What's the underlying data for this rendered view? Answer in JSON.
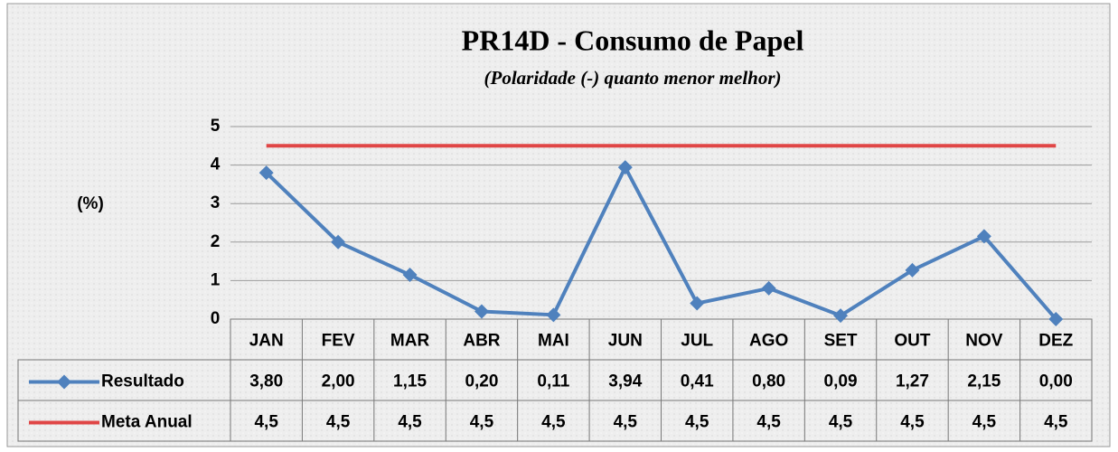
{
  "chart_data": {
    "type": "line",
    "title": "PR14D - Consumo de Papel",
    "subtitle": "(Polaridade (-) quanto menor melhor)",
    "y_label": "(%)",
    "categories": [
      "JAN",
      "FEV",
      "MAR",
      "ABR",
      "MAI",
      "JUN",
      "JUL",
      "AGO",
      "SET",
      "OUT",
      "NOV",
      "DEZ"
    ],
    "series": [
      {
        "name": "Resultado",
        "color": "#4f81bd",
        "marker": "diamond",
        "values": [
          3.8,
          2.0,
          1.15,
          0.2,
          0.11,
          3.94,
          0.41,
          0.8,
          0.09,
          1.27,
          2.15,
          0.0
        ],
        "value_labels": [
          "3,80",
          "2,00",
          "1,15",
          "0,20",
          "0,11",
          "3,94",
          "0,41",
          "0,80",
          "0,09",
          "1,27",
          "2,15",
          "0,00"
        ]
      },
      {
        "name": "Meta Anual",
        "color": "#e04646",
        "marker": "none",
        "values": [
          4.5,
          4.5,
          4.5,
          4.5,
          4.5,
          4.5,
          4.5,
          4.5,
          4.5,
          4.5,
          4.5,
          4.5
        ],
        "value_labels": [
          "4,5",
          "4,5",
          "4,5",
          "4,5",
          "4,5",
          "4,5",
          "4,5",
          "4,5",
          "4,5",
          "4,5",
          "4,5",
          "4,5"
        ]
      }
    ],
    "ylim": [
      0,
      5
    ],
    "yticks": [
      0,
      1,
      2,
      3,
      4,
      5
    ],
    "grid": true,
    "data_table": true
  }
}
